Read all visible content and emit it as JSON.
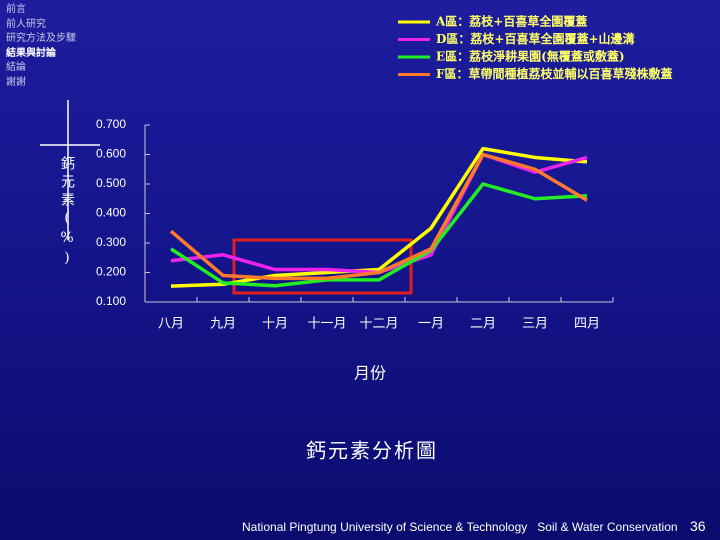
{
  "nav": {
    "items": [
      "前言",
      "前人研究",
      "研究方法及步驟",
      "結果與討論",
      "結論",
      "謝謝"
    ],
    "active": 3
  },
  "chart_data": {
    "type": "line",
    "title": "鈣元素分析圖",
    "x_label": "月份",
    "y_label": "鈣元素(%)",
    "categories": [
      "八月",
      "九月",
      "十月",
      "十一月",
      "十二月",
      "一月",
      "二月",
      "三月",
      "四月"
    ],
    "series": [
      {
        "name": "A區：荔枝+百喜草全園覆蓋",
        "color": "#ffff00",
        "values": [
          0.154,
          0.16,
          0.19,
          0.2,
          0.21,
          0.35,
          0.62,
          0.59,
          0.575
        ]
      },
      {
        "name": "D區：荔枝+百喜草全園覆蓋+山邊溝",
        "color": "#ee22ee",
        "values": [
          0.24,
          0.26,
          0.21,
          0.21,
          0.2,
          0.26,
          0.6,
          0.54,
          0.59
        ]
      },
      {
        "name": "E區：荔枝淨耕果園(無覆蓋或敷蓋)",
        "color": "#22ee22",
        "values": [
          0.28,
          0.165,
          0.155,
          0.175,
          0.175,
          0.275,
          0.5,
          0.45,
          0.46
        ]
      },
      {
        "name": "F區：草帶間種植荔枝並輔以百喜草殘株敷蓋",
        "color": "#ff7a2a",
        "values": [
          0.34,
          0.19,
          0.18,
          0.18,
          0.2,
          0.28,
          0.6,
          0.55,
          0.445
        ]
      }
    ],
    "ylim": [
      0.1,
      0.7
    ],
    "yticks": [
      {
        "value": 0.1,
        "label": "0.100"
      },
      {
        "value": 0.2,
        "label": "0.200"
      },
      {
        "value": 0.3,
        "label": "0.300"
      },
      {
        "value": 0.4,
        "label": "0.400"
      },
      {
        "value": 0.5,
        "label": "0.500"
      },
      {
        "value": 0.6,
        "label": "0.600"
      },
      {
        "value": 0.7,
        "label": "0.700"
      }
    ],
    "legend": "top-right"
  },
  "footer": {
    "institution": "National Pingtung University of Science & Technology   Soil & Water Conservation",
    "page": 36
  }
}
